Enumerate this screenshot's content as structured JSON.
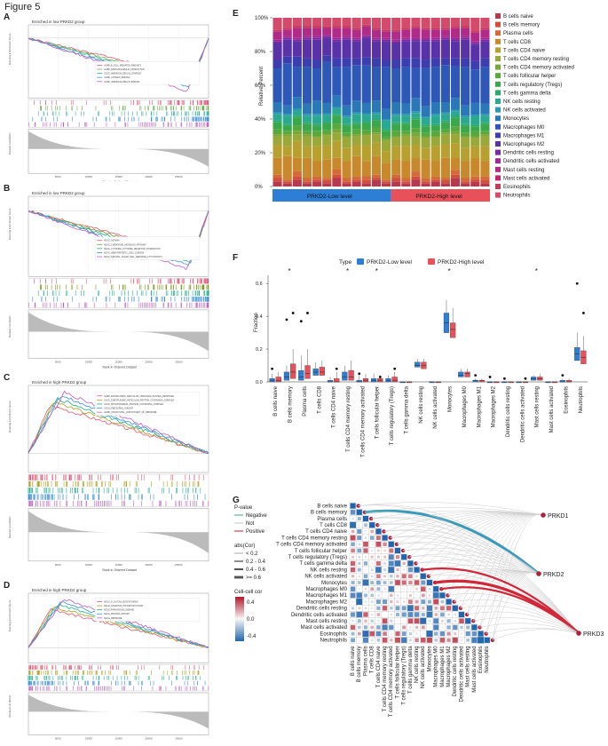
{
  "figure_title": "Figure 5",
  "panels": {
    "A": {
      "label": "A",
      "title": "Enriched in low PRKD2 group",
      "legend": [
        "GOBP_B_CELL_MEDIATED_IMMUNITY",
        "GOBP_IMMUNOGLOBULIN_PRODUCTION",
        "GOCC_IMMUNOGLOBULIN_COMPLEX",
        "GOMF_ANTIGEN_BINDING",
        "GOMF_IMMUNOGLOBULIN_BINDING"
      ],
      "colors": [
        "#e05a7a",
        "#6ab04c",
        "#3ab0a0",
        "#3b8fd6",
        "#c060c0"
      ],
      "ylabel_top": "Running Enrichment Score",
      "ylabel_bottom": "Ranked List Metric",
      "xlabel": "Rank in Ordered Dataset",
      "xticks": [
        "5000",
        "10000",
        "15000",
        "20000",
        "25000"
      ]
    },
    "B": {
      "label": "B",
      "title": "Enriched in low PRKD2 group",
      "legend": [
        "KEGG_ASTHMA",
        "KEGG_CHEMOKINE_SIGNALING_PATHWAY",
        "KEGG_CYTOKINE_CYTOKINE_RECEPTOR_INTERACTION",
        "KEGG_HEMATOPOIETIC_CELL_LINEAGE",
        "KEGG_NATURAL_KILLER_CELL_MEDIATED_CYTOTOXICITY"
      ],
      "colors": [
        "#e05a7a",
        "#7a9a20",
        "#20b090",
        "#3b8fd6",
        "#c060c0"
      ],
      "ylabel_top": "Running Enrichment Score",
      "ylabel_bottom": "Ranked List Metric",
      "xlabel": "Rank in Ordered Dataset",
      "xticks": [
        "5000",
        "10000",
        "15000",
        "20000",
        "25000"
      ]
    },
    "C": {
      "label": "C",
      "title": "Enriched in high PRKD2 group",
      "legend": [
        "GOBP_ENDOPLASMIC_RETICULUM_UNFOLDED_PROTEIN_RESPONSE",
        "GOCC_ENDOPLASMIC_RETICULUM_PROTEIN_CONTAINING_COMPLEX",
        "GOCC_MITOCHONDRIAL_PROTEIN_CONTAINING_COMPLEX",
        "GOCC_RIBOSOMAL_SUBUNIT",
        "GOMF_STRUCTURAL_CONSTITUENT_OF_RIBOSOME"
      ],
      "colors": [
        "#e05a7a",
        "#b0a020",
        "#20b090",
        "#3b8fd6",
        "#c060c0"
      ],
      "ylabel_top": "Running Enrichment Score",
      "ylabel_bottom": "Ranked List Metric",
      "xlabel": "Rank in Ordered Dataset",
      "xticks": [
        "5000",
        "10000",
        "15000",
        "20000",
        "25000"
      ]
    },
    "D": {
      "label": "D",
      "title": "Enriched in high PRKD2 group",
      "legend": [
        "KEGG_N_GLYCAN_BIOSYNTHESIS",
        "KEGG_OXIDATIVE_PHOSPHORYLATION",
        "KEGG_PARKINSONS_DISEASE",
        "KEGG_PROTEIN_EXPORT",
        "KEGG_RIBOSOME"
      ],
      "colors": [
        "#e05a7a",
        "#b0a020",
        "#20b090",
        "#3b8fd6",
        "#c060c0"
      ],
      "ylabel_top": "Running Enrichment Score",
      "ylabel_bottom": "Ranked List Metric",
      "xlabel": "Rank in Ordered Dataset",
      "xticks": [
        "5000",
        "10000",
        "15000",
        "20000",
        "25000"
      ]
    },
    "E": {
      "label": "E",
      "ylabel": "Relative Percent"
    },
    "F": {
      "label": "F",
      "ylabel": "Fraction",
      "legend_title": "Type"
    },
    "G": {
      "label": "G"
    }
  },
  "cell_types": [
    "B cells naive",
    "B cells memory",
    "Plasma cells",
    "T cells CD8",
    "T cells CD4 naive",
    "T cells CD4 memory resting",
    "T cells CD4 memory activated",
    "T cells follicular helper",
    "T cells regulatory (Tregs)",
    "T cells gamma delta",
    "NK cells resting",
    "NK cells activated",
    "Monocytes",
    "Macrophages M0",
    "Macrophages M1",
    "Macrophages M2",
    "Dendritic cells resting",
    "Dendritic cells activated",
    "Mast cells resting",
    "Mast cells activated",
    "Eosinophils",
    "Neutrophils"
  ],
  "cell_colors": [
    "#b5394f",
    "#d0503a",
    "#d46a3a",
    "#c8882c",
    "#b8a030",
    "#9aa83a",
    "#78a83a",
    "#58a83c",
    "#3aa84a",
    "#2ea86a",
    "#2aa890",
    "#2a98b0",
    "#2a78b8",
    "#2e58b8",
    "#3c3eb0",
    "#5a32a8",
    "#7a2aa0",
    "#9a2a98",
    "#b02a88",
    "#c02a6c",
    "#c83a58",
    "#d44a6a"
  ],
  "chart_data": [
    {
      "panel": "E",
      "type": "bar",
      "stacked": true,
      "title": "",
      "ylabel": "Relative Percent",
      "yticks": [
        "0%",
        "20%",
        "40%",
        "60%",
        "80%",
        "100%"
      ],
      "ylim": [
        0,
        100
      ],
      "groups": [
        {
          "name": "PRKD2-Low level",
          "color": "#2d7fd6",
          "count": 12
        },
        {
          "name": "PRKD2-High level",
          "color": "#e8505a",
          "count": 10
        }
      ],
      "samples": 22,
      "note": "Approximate compositions; each column sums to 100%",
      "columns": [
        [
          3,
          2,
          2,
          10,
          8,
          5,
          1,
          3,
          4,
          1,
          4,
          1,
          6,
          20,
          5,
          10,
          1,
          1,
          5,
          0,
          1,
          7
        ],
        [
          2,
          1,
          1,
          14,
          6,
          6,
          1,
          2,
          3,
          1,
          5,
          1,
          5,
          25,
          4,
          10,
          1,
          1,
          4,
          0,
          1,
          6
        ],
        [
          4,
          2,
          3,
          8,
          10,
          4,
          2,
          3,
          5,
          1,
          3,
          1,
          7,
          18,
          6,
          9,
          1,
          1,
          6,
          0,
          1,
          5
        ],
        [
          2,
          1,
          2,
          12,
          7,
          6,
          1,
          2,
          4,
          1,
          4,
          1,
          6,
          22,
          5,
          11,
          1,
          1,
          5,
          0,
          1,
          5
        ],
        [
          3,
          1,
          2,
          9,
          9,
          5,
          1,
          3,
          3,
          1,
          5,
          1,
          8,
          19,
          5,
          12,
          1,
          1,
          5,
          0,
          1,
          5
        ],
        [
          2,
          2,
          1,
          11,
          8,
          6,
          1,
          2,
          4,
          1,
          4,
          1,
          6,
          24,
          4,
          10,
          1,
          1,
          4,
          0,
          1,
          5
        ],
        [
          5,
          2,
          3,
          7,
          10,
          5,
          2,
          3,
          5,
          1,
          3,
          1,
          7,
          17,
          5,
          10,
          1,
          1,
          6,
          0,
          1,
          5
        ],
        [
          2,
          1,
          2,
          10,
          8,
          6,
          1,
          2,
          4,
          1,
          4,
          1,
          6,
          23,
          5,
          11,
          1,
          1,
          5,
          0,
          1,
          5
        ],
        [
          3,
          1,
          2,
          12,
          7,
          5,
          1,
          3,
          3,
          1,
          5,
          1,
          7,
          21,
          4,
          10,
          1,
          1,
          5,
          0,
          1,
          6
        ],
        [
          2,
          2,
          2,
          9,
          9,
          6,
          1,
          2,
          4,
          1,
          4,
          1,
          6,
          22,
          5,
          11,
          1,
          1,
          5,
          0,
          1,
          4
        ],
        [
          4,
          1,
          2,
          11,
          8,
          5,
          1,
          3,
          4,
          1,
          3,
          1,
          7,
          20,
          5,
          10,
          1,
          1,
          5,
          0,
          1,
          6
        ],
        [
          2,
          1,
          1,
          10,
          7,
          6,
          1,
          2,
          3,
          1,
          5,
          1,
          6,
          25,
          4,
          11,
          1,
          1,
          4,
          0,
          1,
          7
        ],
        [
          3,
          2,
          2,
          9,
          8,
          5,
          1,
          3,
          4,
          1,
          4,
          1,
          7,
          20,
          5,
          10,
          1,
          1,
          5,
          0,
          1,
          7
        ],
        [
          2,
          1,
          2,
          10,
          9,
          6,
          1,
          2,
          4,
          1,
          4,
          1,
          6,
          22,
          5,
          10,
          1,
          1,
          5,
          0,
          1,
          6
        ],
        [
          4,
          2,
          3,
          8,
          8,
          5,
          2,
          3,
          5,
          1,
          3,
          1,
          8,
          18,
          6,
          10,
          1,
          1,
          6,
          0,
          1,
          5
        ],
        [
          2,
          1,
          2,
          11,
          7,
          6,
          1,
          2,
          4,
          1,
          4,
          1,
          6,
          23,
          5,
          11,
          1,
          1,
          5,
          0,
          1,
          6
        ],
        [
          3,
          1,
          2,
          9,
          9,
          5,
          1,
          3,
          3,
          1,
          5,
          1,
          7,
          21,
          5,
          10,
          1,
          1,
          5,
          0,
          1,
          6
        ],
        [
          2,
          2,
          1,
          12,
          8,
          6,
          1,
          2,
          4,
          1,
          4,
          1,
          6,
          22,
          4,
          11,
          1,
          1,
          4,
          0,
          1,
          6
        ],
        [
          5,
          2,
          3,
          7,
          9,
          5,
          2,
          3,
          5,
          1,
          3,
          1,
          7,
          19,
          5,
          10,
          1,
          1,
          6,
          0,
          1,
          5
        ],
        [
          2,
          1,
          2,
          10,
          8,
          6,
          1,
          2,
          4,
          1,
          4,
          1,
          6,
          23,
          5,
          11,
          1,
          1,
          5,
          0,
          1,
          5
        ],
        [
          3,
          1,
          2,
          11,
          7,
          5,
          1,
          3,
          3,
          1,
          5,
          1,
          7,
          20,
          5,
          10,
          1,
          1,
          5,
          0,
          1,
          8
        ],
        [
          2,
          2,
          2,
          9,
          9,
          6,
          1,
          2,
          4,
          1,
          4,
          1,
          6,
          22,
          5,
          10,
          1,
          1,
          5,
          0,
          1,
          6
        ]
      ]
    },
    {
      "panel": "F",
      "type": "box",
      "title": "",
      "ylabel": "Fraction",
      "ylim": [
        0,
        0.65
      ],
      "yticks": [
        "0.0",
        "0.2",
        "0.4",
        "0.6"
      ],
      "legend_title": "Type",
      "series": [
        {
          "name": "PRKD2-Low level",
          "color": "#2d7fd6",
          "medians": [
            0.01,
            0.03,
            0.03,
            0.06,
            0.0,
            0.03,
            0.0,
            0.01,
            0.01,
            0.0,
            0.1,
            0.0,
            0.36,
            0.04,
            0.01,
            0.0,
            0.0,
            0.0,
            0.02,
            0.0,
            0.0,
            0.17
          ],
          "q1": [
            0.0,
            0.01,
            0.01,
            0.04,
            0.0,
            0.01,
            0.0,
            0.0,
            0.0,
            0.0,
            0.09,
            0.0,
            0.3,
            0.03,
            0.0,
            0.0,
            0.0,
            0.0,
            0.01,
            0.0,
            0.0,
            0.13
          ],
          "q3": [
            0.02,
            0.06,
            0.07,
            0.08,
            0.01,
            0.06,
            0.01,
            0.02,
            0.02,
            0.0,
            0.12,
            0.0,
            0.42,
            0.06,
            0.01,
            0.0,
            0.0,
            0.0,
            0.03,
            0.0,
            0.01,
            0.21
          ],
          "whisk_hi": [
            0.05,
            0.1,
            0.16,
            0.12,
            0.03,
            0.1,
            0.04,
            0.05,
            0.04,
            0.0,
            0.14,
            0.0,
            0.5,
            0.08,
            0.02,
            0.0,
            0.0,
            0.0,
            0.04,
            0.0,
            0.02,
            0.3
          ],
          "outliers": [
            [
              0.08
            ],
            [
              0.38
            ],
            [
              0.37
            ],
            [],
            [],
            [],
            [
              0.05
            ],
            [],
            [],
            [],
            [],
            [],
            [],
            [],
            [
              0.04
            ],
            [
              0.03
            ],
            [
              0.02
            ],
            [],
            [],
            [],
            [
              0.04
            ],
            [
              0.6
            ]
          ]
        },
        {
          "name": "PRKD2-High level",
          "color": "#e8505a",
          "medians": [
            0.01,
            0.06,
            0.05,
            0.06,
            0.0,
            0.03,
            0.01,
            0.01,
            0.01,
            0.0,
            0.1,
            0.0,
            0.32,
            0.05,
            0.01,
            0.0,
            0.0,
            0.0,
            0.02,
            0.0,
            0.0,
            0.15
          ],
          "q1": [
            0.0,
            0.02,
            0.02,
            0.04,
            0.0,
            0.01,
            0.0,
            0.0,
            0.0,
            0.0,
            0.08,
            0.0,
            0.27,
            0.03,
            0.0,
            0.0,
            0.0,
            0.0,
            0.01,
            0.0,
            0.0,
            0.11
          ],
          "q3": [
            0.03,
            0.11,
            0.1,
            0.09,
            0.02,
            0.07,
            0.02,
            0.02,
            0.03,
            0.0,
            0.12,
            0.0,
            0.36,
            0.06,
            0.01,
            0.0,
            0.0,
            0.0,
            0.03,
            0.0,
            0.01,
            0.19
          ],
          "whisk_hi": [
            0.06,
            0.2,
            0.2,
            0.13,
            0.06,
            0.13,
            0.05,
            0.04,
            0.06,
            0.0,
            0.14,
            0.0,
            0.45,
            0.08,
            0.02,
            0.0,
            0.0,
            0.0,
            0.05,
            0.0,
            0.02,
            0.28
          ],
          "outliers": [
            [],
            [
              0.42
            ],
            [
              0.42
            ],
            [],
            [
              0.08
            ],
            [],
            [],
            [
              0.03
            ],
            [
              0.08
            ],
            [],
            [],
            [],
            [],
            [],
            [],
            [],
            [],
            [
              0.02
            ],
            [],
            [],
            [],
            [
              0.42
            ]
          ]
        }
      ],
      "significance": [
        "",
        "*",
        "",
        "",
        "",
        "*",
        "",
        "*",
        "",
        "",
        "",
        "",
        "*",
        "",
        "",
        "",
        "",
        "",
        "*",
        "",
        "",
        ""
      ]
    },
    {
      "panel": "G",
      "type": "heatmap",
      "title": "",
      "legend": {
        "pvalue_title": "P-value",
        "pvalue_items": [
          "Negative",
          "Not",
          "Positive"
        ],
        "pvalue_colors": [
          "#5fb0a0",
          "#cccccc",
          "#d04050"
        ],
        "abs_title": "abs(Cor)",
        "abs_items": [
          "< 0.2",
          "0.2 - 0.4",
          "0.4 - 0.6",
          ">= 0.6"
        ],
        "cor_title": "Cell-cell cor",
        "cor_ticks": [
          "0.4",
          "0.0",
          "-0.4"
        ]
      },
      "nodes": [
        "PRKD1",
        "PRKD2",
        "PRKD3"
      ],
      "note": "Lower-triangular correlation matrix among 22 immune cell types; values approximate"
    }
  ]
}
